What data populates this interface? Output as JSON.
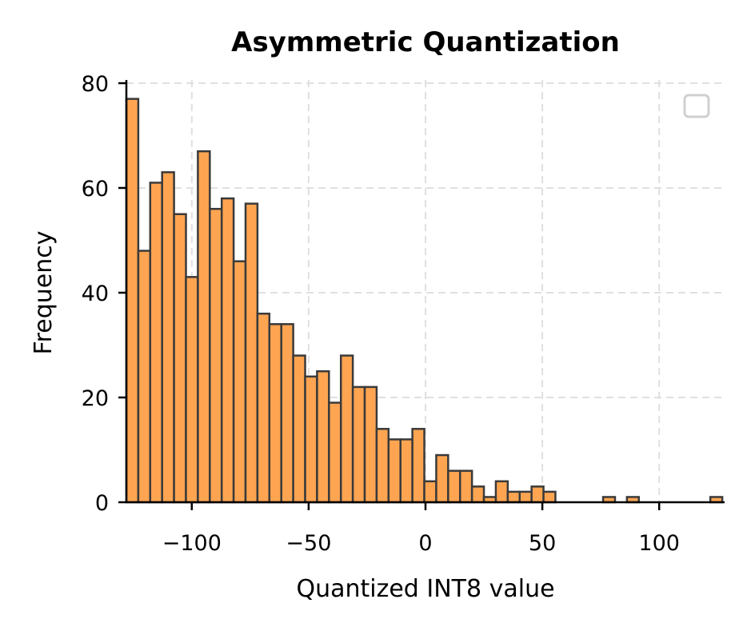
{
  "chart_data": {
    "type": "bar",
    "subtype": "histogram",
    "title": "Asymmetric Quantization",
    "xlabel": "Quantized INT8 value",
    "ylabel": "Frequency",
    "xlim": [
      -128,
      128
    ],
    "ylim": [
      0,
      80
    ],
    "xticks": [
      -100,
      -50,
      0,
      50,
      100
    ],
    "xtick_labels": [
      "−100",
      "−50",
      "0",
      "50",
      "100"
    ],
    "yticks": [
      0,
      20,
      40,
      60,
      80
    ],
    "ytick_labels": [
      "0",
      "20",
      "40",
      "60",
      "80"
    ],
    "grid": true,
    "legend": {
      "position": "upper right",
      "entries": []
    },
    "bin_start": -128,
    "bin_width": 5.1,
    "num_bins": 50,
    "bar_color": "#ffa552",
    "edge_color": "#3a3a3a",
    "values": [
      77,
      48,
      61,
      63,
      55,
      43,
      67,
      56,
      58,
      46,
      57,
      36,
      34,
      34,
      28,
      24,
      25,
      19,
      28,
      22,
      22,
      14,
      12,
      12,
      14,
      4,
      9,
      6,
      6,
      3,
      1,
      4,
      2,
      2,
      3,
      2,
      0,
      0,
      0,
      0,
      1,
      0,
      1,
      0,
      0,
      0,
      0,
      0,
      0,
      1
    ]
  }
}
